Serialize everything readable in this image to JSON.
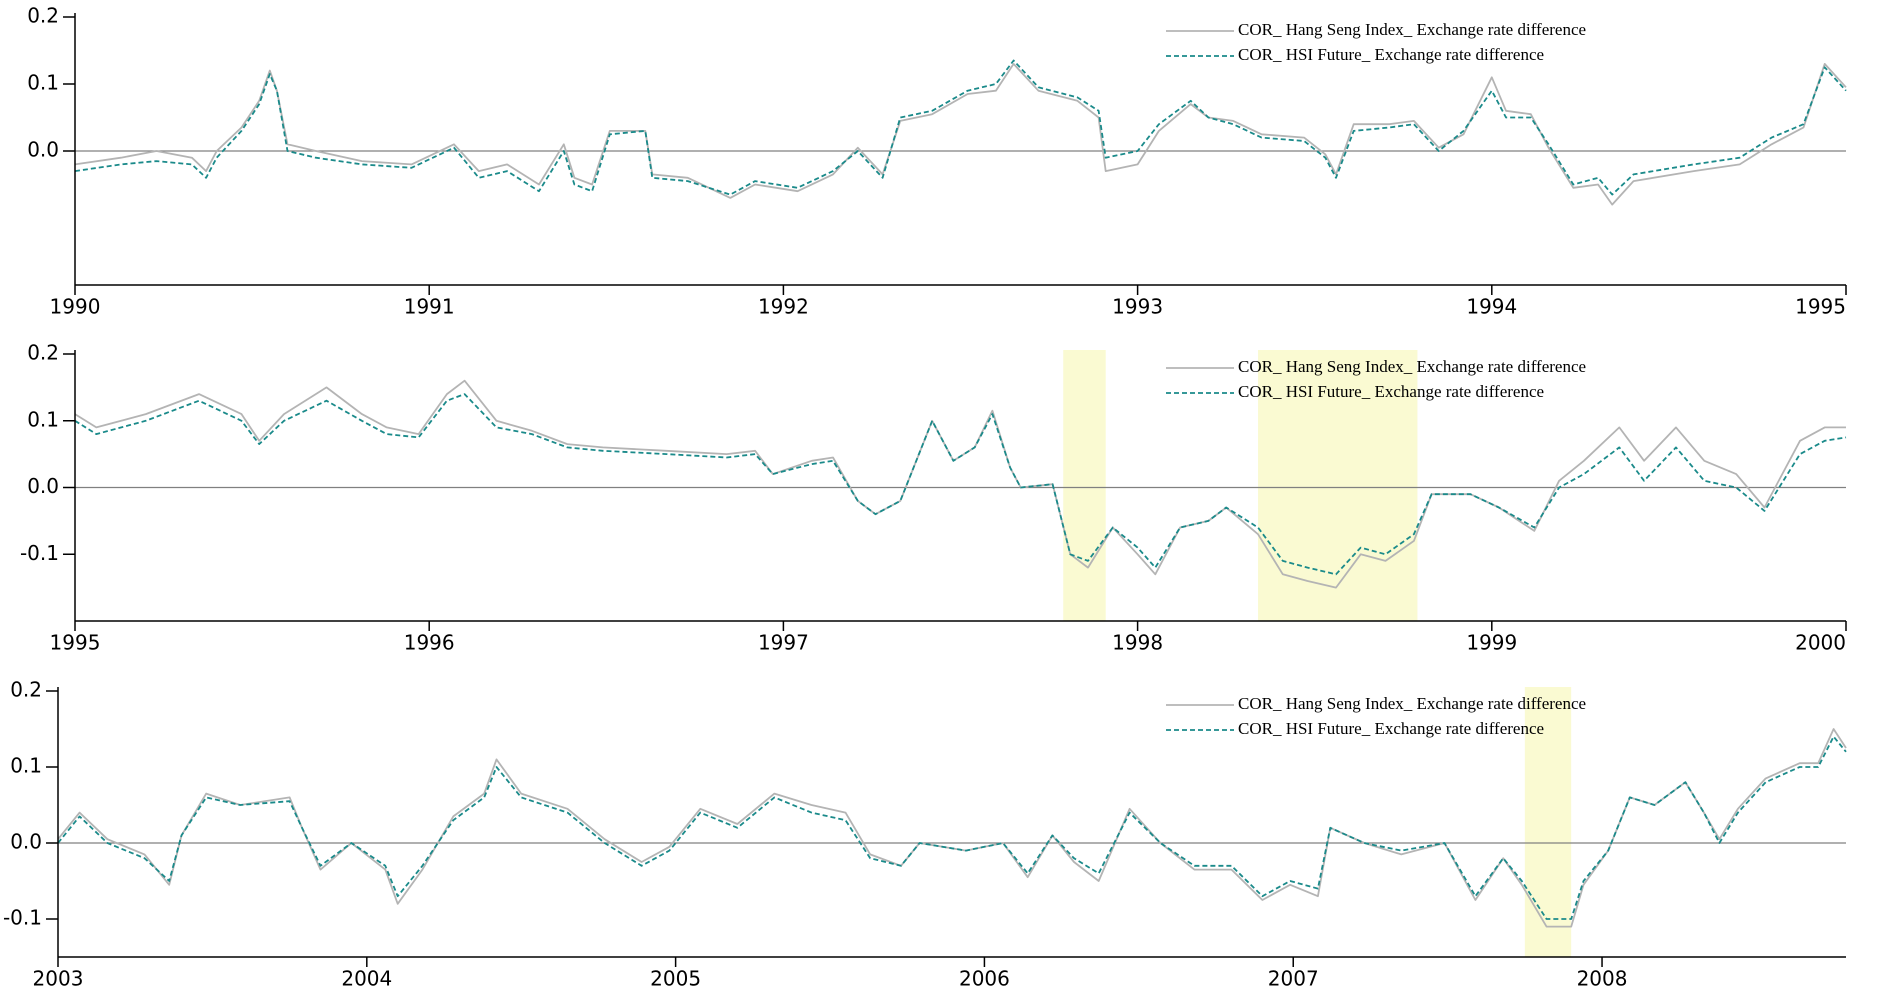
{
  "chart_data": [
    {
      "type": "line",
      "x": [
        1990.0,
        1990.13,
        1990.23,
        1990.33,
        1990.37,
        1990.4,
        1990.47,
        1990.52,
        1990.55,
        1990.57,
        1990.6,
        1990.68,
        1990.81,
        1990.95,
        1991.07,
        1991.14,
        1991.22,
        1991.31,
        1991.38,
        1991.41,
        1991.46,
        1991.51,
        1991.61,
        1991.63,
        1991.73,
        1991.85,
        1991.92,
        1992.04,
        1992.14,
        1992.21,
        1992.28,
        1992.33,
        1992.42,
        1992.52,
        1992.6,
        1992.65,
        1992.72,
        1992.83,
        1992.89,
        1992.91,
        1993.0,
        1993.06,
        1993.15,
        1993.2,
        1993.27,
        1993.35,
        1993.47,
        1993.53,
        1993.56,
        1993.61,
        1993.71,
        1993.78,
        1993.85,
        1993.92,
        1994.0,
        1994.04,
        1994.11,
        1994.16,
        1994.23,
        1994.3,
        1994.34,
        1994.4,
        1994.57,
        1994.7,
        1994.79,
        1994.88,
        1994.94,
        1995.0
      ],
      "series": [
        {
          "name": "COR_ Hang Seng Index_  Exchange rate difference",
          "color": "#b4b4b4",
          "style": "solid",
          "values": [
            -0.02,
            -0.01,
            0.0,
            -0.01,
            -0.03,
            0.0,
            0.035,
            0.075,
            0.12,
            0.09,
            0.01,
            0.0,
            -0.015,
            -0.02,
            0.01,
            -0.03,
            -0.02,
            -0.05,
            0.01,
            -0.04,
            -0.05,
            0.03,
            0.03,
            -0.035,
            -0.04,
            -0.07,
            -0.05,
            -0.06,
            -0.035,
            0.005,
            -0.035,
            0.045,
            0.055,
            0.085,
            0.09,
            0.13,
            0.09,
            0.075,
            0.05,
            -0.03,
            -0.02,
            0.03,
            0.07,
            0.05,
            0.045,
            0.025,
            0.02,
            -0.005,
            -0.035,
            0.04,
            0.04,
            0.045,
            0.005,
            0.025,
            0.11,
            0.06,
            0.055,
            0.005,
            -0.055,
            -0.05,
            -0.08,
            -0.045,
            -0.03,
            -0.02,
            0.01,
            0.035,
            0.13,
            0.095
          ]
        },
        {
          "name": "COR_ HSI Future_ Exchange rate difference",
          "color": "#1a8a8a",
          "style": "dashed",
          "values": [
            -0.03,
            -0.02,
            -0.015,
            -0.02,
            -0.04,
            -0.01,
            0.03,
            0.07,
            0.115,
            0.09,
            0.0,
            -0.01,
            -0.02,
            -0.025,
            0.005,
            -0.04,
            -0.03,
            -0.06,
            0.0,
            -0.05,
            -0.06,
            0.025,
            0.03,
            -0.04,
            -0.045,
            -0.065,
            -0.045,
            -0.055,
            -0.03,
            0.0,
            -0.04,
            0.05,
            0.06,
            0.09,
            0.1,
            0.135,
            0.095,
            0.08,
            0.06,
            -0.01,
            0.0,
            0.04,
            0.075,
            0.05,
            0.04,
            0.02,
            0.015,
            -0.01,
            -0.04,
            0.03,
            0.035,
            0.04,
            0.0,
            0.03,
            0.09,
            0.05,
            0.05,
            0.01,
            -0.05,
            -0.04,
            -0.065,
            -0.035,
            -0.02,
            -0.01,
            0.02,
            0.04,
            0.125,
            0.09
          ]
        }
      ],
      "xlim": [
        1990,
        1995
      ],
      "xticks": [
        1990,
        1991,
        1992,
        1993,
        1994,
        1995
      ],
      "ylim": [
        -0.2,
        0.2
      ],
      "yticks": [
        {
          "value": 0,
          "label": "0.0"
        },
        0.1,
        0.2
      ],
      "zero_line": true,
      "legend": "upper right",
      "shaded_regions": [],
      "shade_color": "#fafad2"
    },
    {
      "type": "line",
      "x": [
        1995.0,
        1995.06,
        1995.2,
        1995.35,
        1995.47,
        1995.52,
        1995.59,
        1995.71,
        1995.81,
        1995.88,
        1995.97,
        1996.05,
        1996.1,
        1996.19,
        1996.29,
        1996.39,
        1996.49,
        1996.67,
        1996.84,
        1996.92,
        1996.97,
        1997.08,
        1997.14,
        1997.21,
        1997.26,
        1997.33,
        1997.42,
        1997.48,
        1997.54,
        1997.59,
        1997.64,
        1997.67,
        1997.76,
        1997.81,
        1997.86,
        1997.93,
        1998.0,
        1998.05,
        1998.12,
        1998.2,
        1998.25,
        1998.34,
        1998.41,
        1998.48,
        1998.56,
        1998.63,
        1998.7,
        1998.78,
        1998.83,
        1998.94,
        1999.02,
        1999.12,
        1999.19,
        1999.26,
        1999.36,
        1999.43,
        1999.52,
        1999.6,
        1999.69,
        1999.77,
        1999.87,
        1999.94,
        2000.0
      ],
      "series": [
        {
          "name": "COR_ Hang Seng Index_  Exchange rate difference",
          "color": "#b4b4b4",
          "style": "solid",
          "values": [
            0.11,
            0.09,
            0.11,
            0.14,
            0.11,
            0.07,
            0.11,
            0.15,
            0.11,
            0.09,
            0.08,
            0.14,
            0.16,
            0.1,
            0.085,
            0.065,
            0.06,
            0.055,
            0.05,
            0.055,
            0.02,
            0.04,
            0.045,
            -0.02,
            -0.04,
            -0.02,
            0.1,
            0.04,
            0.06,
            0.115,
            0.03,
            0.0,
            0.005,
            -0.1,
            -0.12,
            -0.06,
            -0.1,
            -0.13,
            -0.06,
            -0.05,
            -0.03,
            -0.07,
            -0.13,
            -0.14,
            -0.15,
            -0.1,
            -0.11,
            -0.08,
            -0.01,
            -0.01,
            -0.03,
            -0.065,
            0.01,
            0.04,
            0.09,
            0.04,
            0.09,
            0.04,
            0.02,
            -0.03,
            0.07,
            0.09,
            0.09
          ]
        },
        {
          "name": "COR_ HSI Future_ Exchange rate difference",
          "color": "#1a8a8a",
          "style": "dashed",
          "values": [
            0.1,
            0.08,
            0.1,
            0.13,
            0.1,
            0.065,
            0.1,
            0.13,
            0.1,
            0.08,
            0.075,
            0.13,
            0.14,
            0.09,
            0.08,
            0.06,
            0.055,
            0.05,
            0.045,
            0.05,
            0.02,
            0.035,
            0.04,
            -0.02,
            -0.04,
            -0.02,
            0.1,
            0.04,
            0.06,
            0.11,
            0.03,
            0.0,
            0.005,
            -0.1,
            -0.11,
            -0.06,
            -0.09,
            -0.12,
            -0.06,
            -0.05,
            -0.03,
            -0.06,
            -0.11,
            -0.12,
            -0.13,
            -0.09,
            -0.1,
            -0.07,
            -0.01,
            -0.01,
            -0.03,
            -0.06,
            0.0,
            0.02,
            0.06,
            0.01,
            0.06,
            0.01,
            0.0,
            -0.035,
            0.05,
            0.07,
            0.075
          ]
        }
      ],
      "xlim": [
        1995,
        2000
      ],
      "xticks": [
        1995,
        1996,
        1997,
        1998,
        1999,
        2000
      ],
      "ylim": [
        -0.2,
        0.2
      ],
      "yticks": [
        -0.1,
        {
          "value": 0,
          "label": "0.0"
        },
        0.1,
        0.2
      ],
      "zero_line": true,
      "legend": "upper right",
      "shaded_regions": [
        [
          1997.79,
          1997.91
        ],
        [
          1998.34,
          1998.79
        ]
      ],
      "shade_color": "#fafad2"
    },
    {
      "type": "line",
      "x": [
        2003.0,
        2003.07,
        2003.16,
        2003.28,
        2003.36,
        2003.4,
        2003.48,
        2003.59,
        2003.75,
        2003.79,
        2003.85,
        2003.95,
        2004.06,
        2004.1,
        2004.18,
        2004.28,
        2004.38,
        2004.42,
        2004.5,
        2004.65,
        2004.77,
        2004.89,
        2004.98,
        2005.08,
        2005.2,
        2005.32,
        2005.44,
        2005.55,
        2005.63,
        2005.73,
        2005.79,
        2005.94,
        2006.06,
        2006.14,
        2006.22,
        2006.29,
        2006.37,
        2006.47,
        2006.57,
        2006.68,
        2006.8,
        2006.9,
        2006.99,
        2007.08,
        2007.12,
        2007.23,
        2007.35,
        2007.49,
        2007.59,
        2007.68,
        2007.74,
        2007.82,
        2007.9,
        2007.94,
        2008.02,
        2008.09,
        2008.17,
        2008.27,
        2008.33,
        2008.38,
        2008.44,
        2008.53,
        2008.64,
        2008.7,
        2008.75,
        2008.79
      ],
      "series": [
        {
          "name": "COR_ Hang Seng Index_  Exchange rate difference",
          "color": "#b4b4b4",
          "style": "solid",
          "values": [
            0.005,
            0.04,
            0.005,
            -0.015,
            -0.055,
            0.01,
            0.065,
            0.05,
            0.06,
            0.02,
            -0.035,
            0.0,
            -0.035,
            -0.08,
            -0.035,
            0.035,
            0.065,
            0.11,
            0.065,
            0.045,
            0.005,
            -0.025,
            -0.005,
            0.045,
            0.025,
            0.065,
            0.05,
            0.04,
            -0.015,
            -0.03,
            0.0,
            -0.01,
            0.0,
            -0.045,
            0.01,
            -0.025,
            -0.05,
            0.045,
            0.0,
            -0.035,
            -0.035,
            -0.075,
            -0.055,
            -0.07,
            0.02,
            0.0,
            -0.015,
            0.0,
            -0.075,
            -0.02,
            -0.055,
            -0.11,
            -0.11,
            -0.055,
            -0.01,
            0.06,
            0.05,
            0.08,
            0.04,
            0.005,
            0.045,
            0.085,
            0.105,
            0.105,
            0.15,
            0.125
          ]
        },
        {
          "name": "COR_ HSI Future_ Exchange rate difference",
          "color": "#1a8a8a",
          "style": "dashed",
          "values": [
            0.0,
            0.035,
            0.0,
            -0.02,
            -0.05,
            0.01,
            0.06,
            0.05,
            0.055,
            0.02,
            -0.03,
            0.0,
            -0.03,
            -0.07,
            -0.03,
            0.03,
            0.06,
            0.1,
            0.06,
            0.04,
            0.0,
            -0.03,
            -0.01,
            0.04,
            0.02,
            0.06,
            0.04,
            0.03,
            -0.02,
            -0.03,
            0.0,
            -0.01,
            0.0,
            -0.04,
            0.01,
            -0.02,
            -0.04,
            0.04,
            0.0,
            -0.03,
            -0.03,
            -0.07,
            -0.05,
            -0.06,
            0.02,
            0.0,
            -0.01,
            0.0,
            -0.07,
            -0.02,
            -0.05,
            -0.1,
            -0.1,
            -0.05,
            -0.01,
            0.06,
            0.05,
            0.08,
            0.04,
            0.0,
            0.04,
            0.08,
            0.1,
            0.1,
            0.14,
            0.12
          ]
        }
      ],
      "xlim": [
        2003,
        2008.79
      ],
      "xticks": [
        2003,
        2004,
        2005,
        2006,
        2007,
        2008
      ],
      "ylim": [
        -0.15,
        0.2
      ],
      "yticks": [
        -0.1,
        {
          "value": 0,
          "label": "0.0"
        },
        0.1,
        0.2
      ],
      "zero_line": true,
      "legend": "upper right",
      "shaded_regions": [
        [
          2007.75,
          2007.9
        ]
      ],
      "shade_color": "#fafad2"
    }
  ]
}
